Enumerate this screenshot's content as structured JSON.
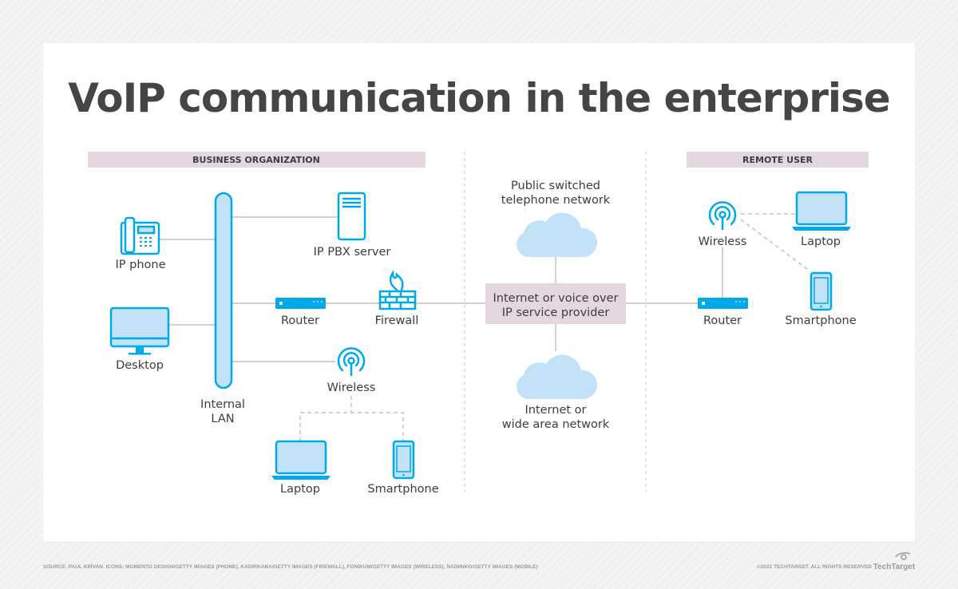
{
  "title": "VoIP communication in the enterprise",
  "sections": {
    "business": "BUSINESS ORGANIZATION",
    "remote": "REMOTE USER"
  },
  "business": {
    "ip_phone": "IP phone",
    "desktop": "Desktop",
    "lan": [
      "Internal",
      "LAN"
    ],
    "pbx": "IP PBX server",
    "router": "Router",
    "firewall": "Firewall",
    "wireless": "Wireless",
    "laptop": "Laptop",
    "smartphone": "Smartphone"
  },
  "center": {
    "pstn": [
      "Public switched",
      "telephone network"
    ],
    "provider": [
      "Internet or voice over",
      "IP service provider"
    ],
    "wan": [
      "Internet or",
      "wide area network"
    ]
  },
  "remote": {
    "wireless": "Wireless",
    "laptop": "Laptop",
    "router": "Router",
    "smartphone": "Smartphone"
  },
  "footer": {
    "source": "SOURCE: PAUL KIRVAN. ICONS: MOMENTO DESIGN/GETTY IMAGES (PHONE), KADIRKABA/GETTY IMAGES (FIREWALL), FONIKUM/GETTY IMAGES (WIRELESS), NADIINKO/GETTY IMAGES (MOBILE)",
    "copyright": "©2021 TECHTARGET. ALL RIGHTS RESERVED",
    "logo": "TechTarget"
  },
  "colors": {
    "icon_stroke": "#00a9e8",
    "icon_fill": "#c2e3f7",
    "connector": "#d3b8c9",
    "section_bar": "#e4d7df"
  }
}
